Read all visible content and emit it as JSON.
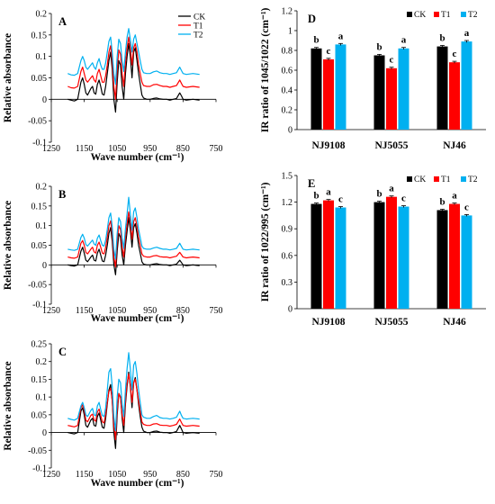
{
  "chart_data": [
    {
      "id": "A",
      "type": "line",
      "panel_label": "A",
      "xlabel": "Wave number (cm⁻¹)",
      "ylabel": "Relative absorbance",
      "xlim": [
        1250,
        750
      ],
      "ylim": [
        -0.1,
        0.2
      ],
      "xticks": [
        "1250",
        "1150",
        "1050",
        "950",
        "850",
        "750"
      ],
      "yticks": [
        "-0.1",
        "-0.05",
        "0",
        "0.05",
        "0.1",
        "0.15",
        "0.2"
      ],
      "legend": "top-right",
      "x": [
        1200,
        1190,
        1180,
        1170,
        1160,
        1155,
        1150,
        1145,
        1140,
        1130,
        1125,
        1120,
        1115,
        1110,
        1105,
        1100,
        1095,
        1090,
        1085,
        1080,
        1075,
        1070,
        1065,
        1060,
        1055,
        1050,
        1045,
        1040,
        1035,
        1030,
        1025,
        1020,
        1015,
        1010,
        1005,
        1000,
        995,
        990,
        985,
        980,
        975,
        970,
        960,
        950,
        940,
        930,
        920,
        910,
        900,
        890,
        880,
        870,
        860,
        855,
        850,
        840,
        830,
        820,
        810,
        800
      ],
      "series": [
        {
          "name": "CK",
          "color": "#000000",
          "values": [
            0.0,
            -0.002,
            -0.004,
            0.0,
            0.04,
            0.05,
            0.035,
            0.015,
            0.01,
            0.025,
            0.03,
            0.015,
            0.012,
            0.035,
            0.045,
            0.03,
            0.012,
            0.01,
            0.03,
            0.06,
            0.09,
            0.11,
            0.07,
            0.0,
            -0.03,
            0.04,
            0.09,
            0.08,
            0.03,
            0.0,
            0.06,
            0.1,
            0.13,
            0.1,
            0.05,
            0.11,
            0.12,
            0.09,
            0.06,
            0.035,
            0.01,
            0.003,
            0.0,
            0.0,
            0.002,
            0.003,
            0.001,
            0.0,
            0.0,
            -0.002,
            0.0,
            0.002,
            0.015,
            0.008,
            0.0,
            -0.002,
            -0.001,
            0.0,
            -0.001,
            -0.002
          ]
        },
        {
          "name": "T1",
          "color": "#ff0000",
          "values": [
            0.03,
            0.027,
            0.026,
            0.03,
            0.065,
            0.075,
            0.06,
            0.045,
            0.04,
            0.05,
            0.055,
            0.045,
            0.04,
            0.06,
            0.07,
            0.055,
            0.04,
            0.04,
            0.055,
            0.08,
            0.11,
            0.125,
            0.09,
            0.03,
            0.0,
            0.07,
            0.115,
            0.105,
            0.06,
            0.03,
            0.085,
            0.12,
            0.145,
            0.12,
            0.08,
            0.12,
            0.13,
            0.11,
            0.08,
            0.06,
            0.04,
            0.032,
            0.03,
            0.03,
            0.034,
            0.035,
            0.032,
            0.03,
            0.03,
            0.028,
            0.03,
            0.032,
            0.045,
            0.037,
            0.03,
            0.028,
            0.029,
            0.03,
            0.029,
            0.028
          ]
        },
        {
          "name": "T2",
          "color": "#00b0f0",
          "values": [
            0.06,
            0.057,
            0.056,
            0.06,
            0.09,
            0.1,
            0.09,
            0.075,
            0.07,
            0.08,
            0.085,
            0.075,
            0.07,
            0.085,
            0.095,
            0.08,
            0.07,
            0.07,
            0.085,
            0.11,
            0.135,
            0.145,
            0.11,
            0.06,
            0.035,
            0.1,
            0.14,
            0.13,
            0.09,
            0.065,
            0.11,
            0.145,
            0.165,
            0.14,
            0.11,
            0.14,
            0.15,
            0.13,
            0.11,
            0.09,
            0.07,
            0.062,
            0.06,
            0.06,
            0.064,
            0.066,
            0.062,
            0.06,
            0.06,
            0.058,
            0.06,
            0.062,
            0.075,
            0.067,
            0.06,
            0.058,
            0.059,
            0.06,
            0.059,
            0.058
          ]
        }
      ]
    },
    {
      "id": "B",
      "type": "line",
      "panel_label": "B",
      "xlabel": "Wave number (cm⁻¹)",
      "ylabel": "Relative absorbance",
      "xlim": [
        1250,
        750
      ],
      "ylim": [
        -0.1,
        0.2
      ],
      "xticks": [
        "1250",
        "1150",
        "1050",
        "950",
        "850",
        "750"
      ],
      "yticks": [
        "-0.1",
        "-0.05",
        "0",
        "0.05",
        "0.1",
        "0.15",
        "0.2"
      ],
      "x": [
        1200,
        1190,
        1180,
        1170,
        1160,
        1155,
        1150,
        1145,
        1140,
        1130,
        1125,
        1120,
        1115,
        1110,
        1105,
        1100,
        1095,
        1090,
        1085,
        1080,
        1075,
        1070,
        1065,
        1060,
        1055,
        1050,
        1045,
        1040,
        1035,
        1030,
        1025,
        1020,
        1015,
        1010,
        1005,
        1000,
        995,
        990,
        985,
        980,
        975,
        970,
        960,
        950,
        940,
        930,
        920,
        910,
        900,
        890,
        880,
        870,
        860,
        855,
        850,
        840,
        830,
        820,
        810,
        800
      ],
      "series": [
        {
          "name": "CK",
          "color": "#000000",
          "values": [
            0.0,
            -0.002,
            -0.003,
            0.0,
            0.035,
            0.045,
            0.03,
            0.012,
            0.008,
            0.02,
            0.025,
            0.012,
            0.01,
            0.03,
            0.04,
            0.025,
            0.01,
            0.008,
            0.025,
            0.05,
            0.08,
            0.095,
            0.06,
            0.0,
            -0.025,
            0.035,
            0.08,
            0.07,
            0.025,
            0.0,
            0.05,
            0.085,
            0.12,
            0.09,
            0.045,
            0.095,
            0.105,
            0.08,
            0.05,
            0.03,
            0.008,
            0.002,
            0.0,
            0.0,
            0.002,
            0.003,
            0.001,
            0.0,
            0.0,
            -0.002,
            0.0,
            0.002,
            0.012,
            0.006,
            0.0,
            -0.002,
            -0.001,
            0.0,
            -0.001,
            -0.002
          ]
        },
        {
          "name": "T1",
          "color": "#ff0000",
          "values": [
            0.02,
            0.018,
            0.017,
            0.02,
            0.055,
            0.062,
            0.05,
            0.032,
            0.028,
            0.04,
            0.045,
            0.033,
            0.03,
            0.05,
            0.058,
            0.045,
            0.03,
            0.028,
            0.045,
            0.07,
            0.1,
            0.112,
            0.078,
            0.02,
            -0.005,
            0.058,
            0.1,
            0.09,
            0.045,
            0.02,
            0.07,
            0.105,
            0.135,
            0.108,
            0.065,
            0.11,
            0.12,
            0.098,
            0.07,
            0.05,
            0.028,
            0.022,
            0.02,
            0.02,
            0.023,
            0.024,
            0.021,
            0.02,
            0.02,
            0.018,
            0.02,
            0.022,
            0.032,
            0.026,
            0.02,
            0.018,
            0.019,
            0.02,
            0.019,
            0.018
          ]
        },
        {
          "name": "T2",
          "color": "#00b0f0",
          "values": [
            0.04,
            0.038,
            0.037,
            0.04,
            0.07,
            0.078,
            0.068,
            0.052,
            0.048,
            0.058,
            0.063,
            0.053,
            0.05,
            0.068,
            0.076,
            0.062,
            0.05,
            0.048,
            0.063,
            0.09,
            0.12,
            0.132,
            0.098,
            0.04,
            0.015,
            0.08,
            0.12,
            0.11,
            0.068,
            0.042,
            0.092,
            0.13,
            0.172,
            0.13,
            0.088,
            0.135,
            0.145,
            0.12,
            0.09,
            0.07,
            0.048,
            0.042,
            0.04,
            0.04,
            0.043,
            0.045,
            0.042,
            0.04,
            0.04,
            0.038,
            0.04,
            0.042,
            0.055,
            0.047,
            0.04,
            0.038,
            0.039,
            0.04,
            0.039,
            0.038
          ]
        }
      ]
    },
    {
      "id": "C",
      "type": "line",
      "panel_label": "C",
      "xlabel": "Wave number (cm⁻¹)",
      "ylabel": "Relative absorbance",
      "xlim": [
        1250,
        750
      ],
      "ylim": [
        -0.1,
        0.25
      ],
      "xticks": [
        "1250",
        "1150",
        "1050",
        "950",
        "850",
        "750"
      ],
      "yticks": [
        "-0.1",
        "-0.05",
        "0",
        "0.05",
        "0.1",
        "0.15",
        "0.2",
        "0.25"
      ],
      "x": [
        1200,
        1190,
        1180,
        1170,
        1160,
        1155,
        1150,
        1145,
        1140,
        1130,
        1125,
        1120,
        1115,
        1110,
        1105,
        1100,
        1095,
        1090,
        1085,
        1080,
        1075,
        1070,
        1065,
        1060,
        1055,
        1050,
        1045,
        1040,
        1035,
        1030,
        1025,
        1020,
        1015,
        1010,
        1005,
        1000,
        995,
        990,
        985,
        980,
        975,
        970,
        960,
        950,
        940,
        930,
        920,
        910,
        900,
        890,
        880,
        870,
        860,
        855,
        850,
        840,
        830,
        820,
        810,
        800
      ],
      "series": [
        {
          "name": "CK",
          "color": "#000000",
          "values": [
            0.0,
            -0.002,
            -0.004,
            0.0,
            0.06,
            0.07,
            0.05,
            0.02,
            0.015,
            0.035,
            0.04,
            0.02,
            0.018,
            0.045,
            0.055,
            0.035,
            0.015,
            0.012,
            0.04,
            0.08,
            0.12,
            0.135,
            0.09,
            0.0,
            -0.045,
            0.05,
            0.11,
            0.1,
            0.04,
            0.0,
            0.08,
            0.13,
            0.17,
            0.13,
            0.07,
            0.14,
            0.155,
            0.12,
            0.08,
            0.045,
            0.015,
            0.004,
            0.0,
            0.0,
            0.003,
            0.004,
            0.001,
            0.0,
            0.0,
            -0.002,
            0.0,
            0.003,
            0.02,
            0.01,
            0.0,
            -0.002,
            -0.001,
            0.0,
            -0.001,
            -0.002
          ]
        },
        {
          "name": "T1",
          "color": "#ff0000",
          "values": [
            0.02,
            0.018,
            0.016,
            0.02,
            0.07,
            0.078,
            0.062,
            0.035,
            0.03,
            0.048,
            0.052,
            0.035,
            0.032,
            0.058,
            0.066,
            0.048,
            0.03,
            0.027,
            0.052,
            0.085,
            0.115,
            0.125,
            0.09,
            0.02,
            -0.02,
            0.065,
            0.11,
            0.098,
            0.05,
            0.02,
            0.09,
            0.14,
            0.165,
            0.135,
            0.085,
            0.14,
            0.15,
            0.12,
            0.09,
            0.06,
            0.03,
            0.023,
            0.02,
            0.02,
            0.024,
            0.025,
            0.021,
            0.02,
            0.02,
            0.018,
            0.02,
            0.023,
            0.038,
            0.028,
            0.02,
            0.018,
            0.019,
            0.02,
            0.019,
            0.018
          ]
        },
        {
          "name": "T2",
          "color": "#00b0f0",
          "values": [
            0.04,
            0.037,
            0.035,
            0.04,
            0.075,
            0.085,
            0.07,
            0.05,
            0.045,
            0.062,
            0.068,
            0.05,
            0.047,
            0.075,
            0.085,
            0.065,
            0.048,
            0.045,
            0.07,
            0.12,
            0.17,
            0.18,
            0.13,
            0.045,
            0.005,
            0.1,
            0.15,
            0.14,
            0.08,
            0.045,
            0.12,
            0.18,
            0.225,
            0.18,
            0.12,
            0.19,
            0.2,
            0.165,
            0.12,
            0.085,
            0.05,
            0.043,
            0.04,
            0.04,
            0.045,
            0.048,
            0.042,
            0.04,
            0.04,
            0.038,
            0.04,
            0.043,
            0.06,
            0.048,
            0.04,
            0.038,
            0.039,
            0.04,
            0.039,
            0.038
          ]
        }
      ]
    },
    {
      "id": "D",
      "type": "bar",
      "panel_label": "D",
      "ylabel": "IR ratio of 1045/1022 (cm⁻¹)",
      "ylim": [
        0,
        1.2
      ],
      "yticks": [
        "0",
        "0.2",
        "0.4",
        "0.6",
        "0.8",
        "1",
        "1.2"
      ],
      "legend": "top-right",
      "categories": [
        "NJ9108",
        "NJ5055",
        "NJ46"
      ],
      "series": [
        {
          "name": "CK",
          "color": "#000000",
          "values": [
            0.82,
            0.75,
            0.84
          ],
          "errors": [
            0.01,
            0.01,
            0.01
          ],
          "letters": [
            "b",
            "b",
            "b"
          ]
        },
        {
          "name": "T1",
          "color": "#ff0000",
          "values": [
            0.71,
            0.62,
            0.68
          ],
          "errors": [
            0.01,
            0.01,
            0.01
          ],
          "letters": [
            "c",
            "c",
            "c"
          ]
        },
        {
          "name": "T2",
          "color": "#00b0f0",
          "values": [
            0.86,
            0.82,
            0.89
          ],
          "errors": [
            0.01,
            0.01,
            0.01
          ],
          "letters": [
            "a",
            "a",
            "a"
          ]
        }
      ]
    },
    {
      "id": "E",
      "type": "bar",
      "panel_label": "E",
      "ylabel": "IR ratio of 1022/995 (cm⁻¹)",
      "ylim": [
        0,
        1.5
      ],
      "yticks": [
        "0",
        "0.3",
        "0.6",
        "0.9",
        "1.2",
        "1.5"
      ],
      "legend": "top-right",
      "categories": [
        "NJ9108",
        "NJ5055",
        "NJ46"
      ],
      "series": [
        {
          "name": "CK",
          "color": "#000000",
          "values": [
            1.18,
            1.2,
            1.11
          ],
          "errors": [
            0.01,
            0.01,
            0.01
          ],
          "letters": [
            "b",
            "b",
            "b"
          ]
        },
        {
          "name": "T1",
          "color": "#ff0000",
          "values": [
            1.22,
            1.26,
            1.18
          ],
          "errors": [
            0.01,
            0.01,
            0.01
          ],
          "letters": [
            "a",
            "a",
            "a"
          ]
        },
        {
          "name": "T2",
          "color": "#00b0f0",
          "values": [
            1.14,
            1.15,
            1.05
          ],
          "errors": [
            0.01,
            0.01,
            0.01
          ],
          "letters": [
            "c",
            "c",
            "c"
          ]
        }
      ]
    }
  ]
}
